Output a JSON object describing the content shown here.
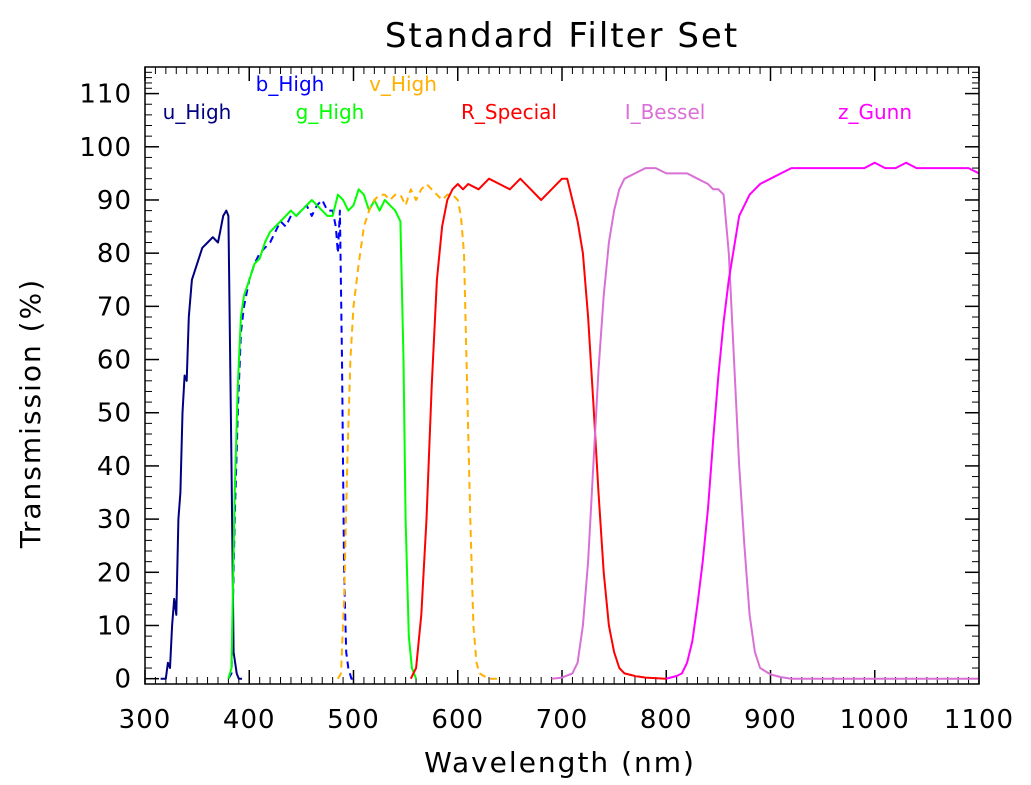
{
  "chart_data": {
    "type": "line",
    "title": "Standard Filter Set",
    "xlabel": "Wavelength (nm)",
    "ylabel": "Transmission (%)",
    "xlim": [
      300,
      1100
    ],
    "ylim": [
      -1,
      115
    ],
    "x_ticks": [
      300,
      400,
      500,
      600,
      700,
      800,
      900,
      1000,
      1100
    ],
    "y_ticks": [
      0,
      10,
      20,
      30,
      40,
      50,
      60,
      70,
      80,
      90,
      100,
      110
    ],
    "grid": false,
    "series": [
      {
        "name": "u_High",
        "color": "#000080",
        "dash": "solid",
        "x": [
          315,
          320,
          322,
          324,
          326,
          328,
          330,
          332,
          334,
          336,
          338,
          340,
          342,
          345,
          350,
          355,
          360,
          365,
          370,
          372,
          375,
          378,
          380,
          383,
          385,
          388,
          390,
          393
        ],
        "y": [
          0,
          0,
          3,
          2,
          10,
          15,
          12,
          30,
          35,
          50,
          57,
          56,
          68,
          75,
          78,
          81,
          82,
          83,
          82,
          84,
          87,
          88,
          87,
          40,
          5,
          1,
          0,
          0
        ]
      },
      {
        "name": "b_High",
        "color": "#0000ff",
        "dash": "dashed",
        "x": [
          380,
          383,
          386,
          389,
          392,
          395,
          400,
          405,
          410,
          415,
          420,
          425,
          430,
          435,
          440,
          445,
          450,
          455,
          460,
          465,
          470,
          475,
          480,
          483,
          485,
          487,
          489,
          491,
          493,
          495,
          498,
          500
        ],
        "y": [
          0,
          1,
          30,
          50,
          65,
          70,
          75,
          78,
          80,
          81,
          82,
          84,
          86,
          85,
          87,
          87,
          88,
          89,
          87,
          89,
          90,
          88,
          88,
          85,
          80,
          88,
          60,
          20,
          5,
          2,
          0,
          0
        ]
      },
      {
        "name": "g_High",
        "color": "#00ff00",
        "dash": "solid",
        "x": [
          380,
          383,
          386,
          389,
          392,
          395,
          400,
          405,
          410,
          415,
          420,
          425,
          430,
          435,
          440,
          445,
          450,
          455,
          460,
          465,
          470,
          475,
          480,
          485,
          490,
          495,
          500,
          505,
          510,
          515,
          520,
          525,
          530,
          535,
          540,
          545,
          548,
          550,
          553,
          556,
          560
        ],
        "y": [
          0,
          2,
          35,
          55,
          68,
          72,
          75,
          78,
          79,
          82,
          84,
          85,
          86,
          87,
          88,
          87,
          88,
          89,
          90,
          89,
          88,
          87,
          87,
          91,
          90,
          88,
          89,
          92,
          91,
          88,
          90,
          88,
          90,
          89,
          88,
          86,
          60,
          30,
          8,
          2,
          0
        ]
      },
      {
        "name": "v_High",
        "color": "#ffb000",
        "dash": "dashed",
        "x": [
          485,
          488,
          491,
          494,
          497,
          500,
          505,
          510,
          515,
          520,
          525,
          530,
          535,
          540,
          545,
          550,
          555,
          560,
          565,
          570,
          575,
          580,
          585,
          590,
          595,
          600,
          603,
          606,
          609,
          612,
          615,
          618,
          621,
          625,
          630,
          640
        ],
        "y": [
          0,
          1,
          15,
          40,
          60,
          70,
          78,
          85,
          88,
          90,
          91,
          91,
          90,
          91,
          91,
          89,
          92,
          90,
          92,
          93,
          92,
          91,
          90,
          91,
          91,
          90,
          87,
          80,
          55,
          30,
          10,
          3,
          1,
          0.5,
          0,
          0
        ]
      },
      {
        "name": "R_Special",
        "color": "#ff0000",
        "dash": "solid",
        "x": [
          555,
          560,
          565,
          570,
          575,
          580,
          585,
          590,
          595,
          600,
          605,
          610,
          620,
          630,
          640,
          650,
          660,
          670,
          680,
          690,
          700,
          705,
          710,
          715,
          720,
          725,
          730,
          735,
          740,
          745,
          750,
          755,
          760,
          770,
          780,
          800
        ],
        "y": [
          0,
          2,
          12,
          30,
          55,
          75,
          85,
          90,
          92,
          93,
          92,
          93,
          92,
          94,
          93,
          92,
          94,
          92,
          90,
          92,
          94,
          94,
          90,
          86,
          80,
          68,
          52,
          35,
          20,
          10,
          5,
          2,
          1,
          0.5,
          0.2,
          0
        ]
      },
      {
        "name": "I_Bessel",
        "color": "#da70d6",
        "dash": "solid",
        "x": [
          690,
          700,
          710,
          715,
          720,
          725,
          730,
          735,
          740,
          745,
          750,
          755,
          760,
          770,
          780,
          790,
          800,
          810,
          820,
          830,
          840,
          845,
          850,
          855,
          860,
          865,
          870,
          875,
          880,
          885,
          890,
          900,
          910,
          920,
          1100
        ],
        "y": [
          0,
          0.2,
          1,
          3,
          10,
          22,
          40,
          58,
          72,
          82,
          88,
          92,
          94,
          95,
          96,
          96,
          95,
          95,
          95,
          94,
          93,
          92,
          92,
          91,
          80,
          60,
          40,
          25,
          12,
          5,
          2,
          0.8,
          0.3,
          0,
          0
        ]
      },
      {
        "name": "z_Gunn",
        "color": "#ff00ff",
        "dash": "solid",
        "x": [
          800,
          810,
          815,
          820,
          825,
          830,
          835,
          840,
          845,
          850,
          855,
          860,
          865,
          870,
          875,
          880,
          885,
          890,
          900,
          910,
          920,
          930,
          940,
          950,
          960,
          970,
          980,
          990,
          1000,
          1010,
          1020,
          1030,
          1040,
          1050,
          1060,
          1070,
          1080,
          1090,
          1100
        ],
        "y": [
          0,
          0.5,
          1,
          3,
          7,
          14,
          22,
          32,
          45,
          57,
          67,
          75,
          81,
          87,
          89,
          91,
          92,
          93,
          94,
          95,
          96,
          96,
          96,
          96,
          96,
          96,
          96,
          96,
          97,
          96,
          96,
          97,
          96,
          96,
          96,
          96,
          96,
          96,
          95
        ]
      }
    ]
  }
}
